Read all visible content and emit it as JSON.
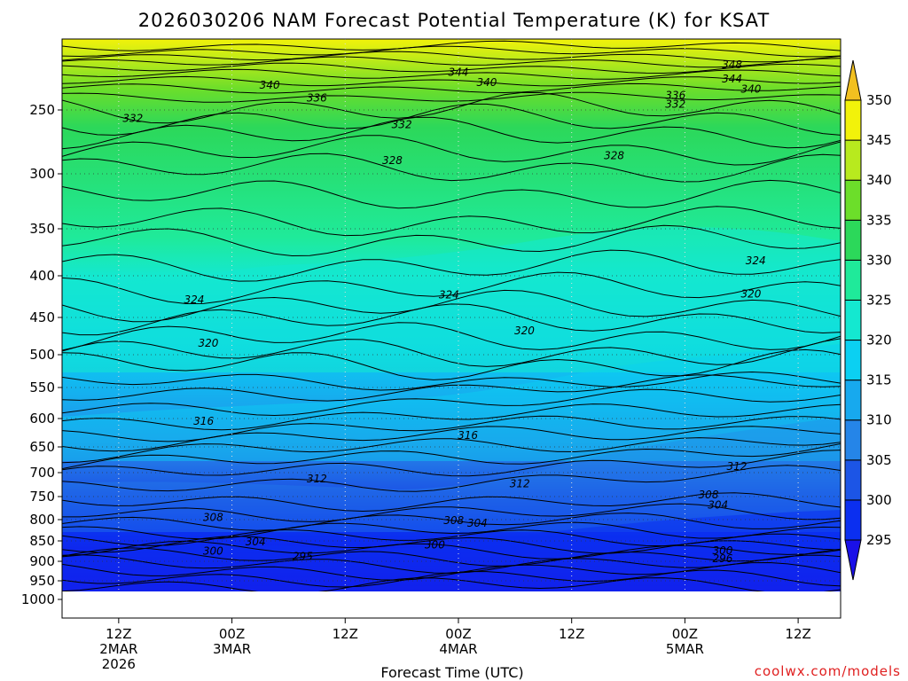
{
  "chart_data": {
    "type": "heatmap",
    "title": "2026030206 NAM Forecast Potential Temperature (K) for KSAT",
    "xlabel": "Forecast Time (UTC)",
    "ylabel": "",
    "y_reverse": true,
    "y_ticks": [
      250,
      300,
      350,
      400,
      450,
      500,
      550,
      600,
      650,
      700,
      750,
      800,
      850,
      900,
      950,
      1000
    ],
    "x_ticks": [
      {
        "hours": 6,
        "line1": "12Z",
        "line2": "2MAR",
        "line3": "2026"
      },
      {
        "hours": 18,
        "line1": "00Z",
        "line2": "3MAR",
        "line3": ""
      },
      {
        "hours": 30,
        "line1": "12Z",
        "line2": "",
        "line3": ""
      },
      {
        "hours": 42,
        "line1": "00Z",
        "line2": "4MAR",
        "line3": ""
      },
      {
        "hours": 54,
        "line1": "12Z",
        "line2": "",
        "line3": ""
      },
      {
        "hours": 66,
        "line1": "00Z",
        "line2": "5MAR",
        "line3": ""
      },
      {
        "hours": 78,
        "line1": "12Z",
        "line2": "",
        "line3": ""
      }
    ],
    "colorbar": {
      "levels": [
        295,
        300,
        305,
        310,
        315,
        320,
        325,
        330,
        335,
        340,
        345,
        350
      ],
      "labels": [
        "295",
        "300",
        "305",
        "310",
        "315",
        "320",
        "325",
        "330",
        "335",
        "340",
        "345",
        "350"
      ],
      "colors": [
        "#1a10e8",
        "#0b2ff0",
        "#1c55e6",
        "#2585e8",
        "#17a9ee",
        "#0bd0f2",
        "#14e8d0",
        "#1fea9a",
        "#2cd85a",
        "#6cde2a",
        "#b8ea1e",
        "#f2f20a",
        "#f2c020"
      ]
    },
    "contour_labels": [
      {
        "text": "348",
        "t": 71.0,
        "p": 216
      },
      {
        "text": "344",
        "t": 42.0,
        "p": 222
      },
      {
        "text": "344",
        "t": 71.0,
        "p": 227
      },
      {
        "text": "340",
        "t": 22.0,
        "p": 232
      },
      {
        "text": "340",
        "t": 45.0,
        "p": 230
      },
      {
        "text": "340",
        "t": 73.0,
        "p": 235
      },
      {
        "text": "336",
        "t": 27.0,
        "p": 242
      },
      {
        "text": "336",
        "t": 65.0,
        "p": 240
      },
      {
        "text": "332",
        "t": 7.5,
        "p": 258
      },
      {
        "text": "332",
        "t": 36.0,
        "p": 263
      },
      {
        "text": "332",
        "t": 65.0,
        "p": 247
      },
      {
        "text": "328",
        "t": 35.0,
        "p": 291
      },
      {
        "text": "328",
        "t": 58.5,
        "p": 287
      },
      {
        "text": "324",
        "t": 73.5,
        "p": 386
      },
      {
        "text": "324",
        "t": 14.0,
        "p": 431
      },
      {
        "text": "324",
        "t": 41.0,
        "p": 425
      },
      {
        "text": "320",
        "t": 73.0,
        "p": 424
      },
      {
        "text": "320",
        "t": 49.0,
        "p": 470
      },
      {
        "text": "320",
        "t": 15.5,
        "p": 487
      },
      {
        "text": "316",
        "t": 15.0,
        "p": 608
      },
      {
        "text": "316",
        "t": 43.0,
        "p": 633
      },
      {
        "text": "312",
        "t": 71.5,
        "p": 691
      },
      {
        "text": "312",
        "t": 27.0,
        "p": 717
      },
      {
        "text": "312",
        "t": 48.5,
        "p": 727
      },
      {
        "text": "308",
        "t": 68.5,
        "p": 750
      },
      {
        "text": "304",
        "t": 69.5,
        "p": 772
      },
      {
        "text": "308",
        "t": 16.0,
        "p": 799
      },
      {
        "text": "308",
        "t": 41.5,
        "p": 806
      },
      {
        "text": "304",
        "t": 44.0,
        "p": 813
      },
      {
        "text": "304",
        "t": 20.5,
        "p": 856
      },
      {
        "text": "300",
        "t": 39.5,
        "p": 864
      },
      {
        "text": "300",
        "t": 16.0,
        "p": 879
      },
      {
        "text": "295",
        "t": 25.5,
        "p": 892
      },
      {
        "text": "300",
        "t": 70.0,
        "p": 878
      },
      {
        "text": "296",
        "t": 70.0,
        "p": 898
      }
    ]
  },
  "credit": "coolwx.com/models"
}
